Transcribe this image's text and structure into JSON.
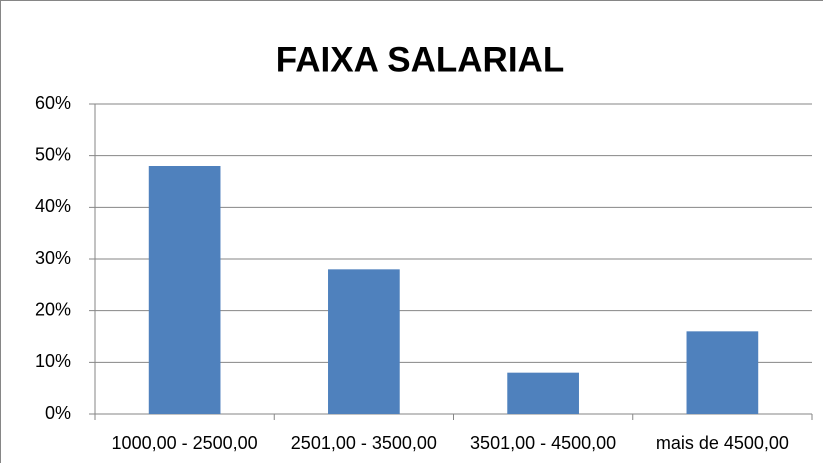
{
  "chart_data": {
    "type": "bar",
    "title": "FAIXA SALARIAL",
    "categories": [
      "1000,00 - 2500,00",
      "2501,00 - 3500,00",
      "3501,00 - 4500,00",
      "mais de 4500,00"
    ],
    "values": [
      48,
      28,
      8,
      16
    ],
    "color": "#4f81bd",
    "ylim": [
      0,
      60
    ],
    "yticks": [
      {
        "value": 0,
        "label": "0%"
      },
      {
        "value": 10,
        "label": "10%"
      },
      {
        "value": 20,
        "label": "20%"
      },
      {
        "value": 30,
        "label": "30%"
      },
      {
        "value": 40,
        "label": "40%"
      },
      {
        "value": 50,
        "label": "50%"
      },
      {
        "value": 60,
        "label": "60%"
      }
    ],
    "grid": true
  }
}
